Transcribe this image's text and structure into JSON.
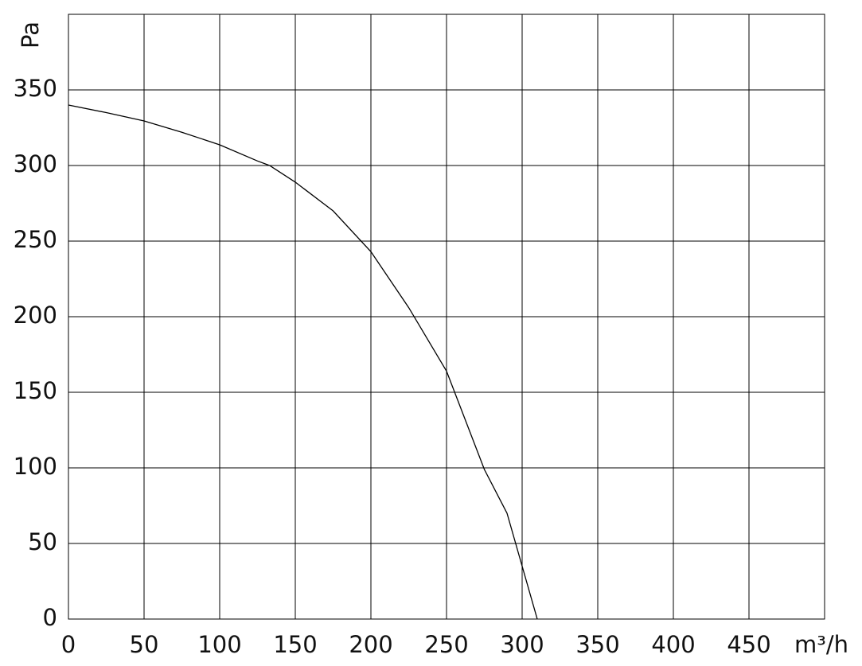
{
  "chart_data": {
    "type": "line",
    "x_label": "m³/h",
    "y_label": "Pa",
    "x": [
      0,
      25,
      50,
      75,
      100,
      125,
      133,
      150,
      175,
      200,
      225,
      250,
      275,
      290,
      300,
      310
    ],
    "series": [
      {
        "color": "#000000",
        "values": [
          340,
          335,
          329.5,
          322,
          313.7,
          303,
          300,
          289,
          270,
          243,
          206,
          164,
          99,
          70,
          35,
          0
        ]
      }
    ],
    "xlim": [
      0,
      500
    ],
    "xticks": [
      0,
      50,
      100,
      150,
      200,
      250,
      300,
      350,
      400,
      450
    ],
    "ylim": [
      0,
      400
    ],
    "yticks": [
      0,
      50,
      100,
      150,
      200,
      250,
      300,
      350
    ],
    "grid": true
  }
}
